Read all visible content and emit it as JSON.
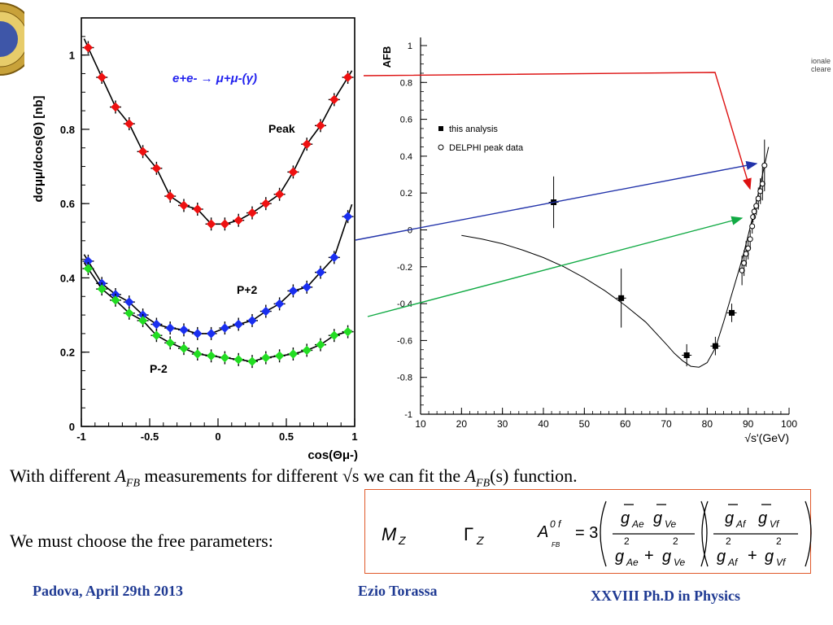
{
  "chart_data": [
    {
      "type": "scatter",
      "title": "",
      "xlabel": "cos(Θμ-)",
      "ylabel": "dσμμ/dcos(Θ) [nb]",
      "xlim": [
        -1,
        1
      ],
      "ylim": [
        0,
        1.1
      ],
      "x_ticks": [
        "-1",
        "-0.5",
        "0",
        "0.5",
        "1"
      ],
      "y_ticks": [
        "0",
        "0.2",
        "0.4",
        "0.6",
        "0.8",
        "1"
      ],
      "annotation": "e+e- → μ+μ-(γ)",
      "series": [
        {
          "name": "Peak",
          "color": "#ee1111",
          "x": [
            -0.95,
            -0.85,
            -0.75,
            -0.65,
            -0.55,
            -0.45,
            -0.35,
            -0.25,
            -0.15,
            -0.05,
            0.05,
            0.15,
            0.25,
            0.35,
            0.45,
            0.55,
            0.65,
            0.75,
            0.85,
            0.95
          ],
          "y": [
            1.02,
            0.94,
            0.86,
            0.815,
            0.74,
            0.695,
            0.62,
            0.595,
            0.585,
            0.545,
            0.545,
            0.555,
            0.575,
            0.6,
            0.625,
            0.685,
            0.76,
            0.81,
            0.88,
            0.94
          ]
        },
        {
          "name": "P+2",
          "color": "#1a2ff0",
          "x": [
            -0.95,
            -0.85,
            -0.75,
            -0.65,
            -0.55,
            -0.45,
            -0.35,
            -0.25,
            -0.15,
            -0.05,
            0.05,
            0.15,
            0.25,
            0.35,
            0.45,
            0.55,
            0.65,
            0.75,
            0.85,
            0.95
          ],
          "y": [
            0.445,
            0.385,
            0.355,
            0.335,
            0.3,
            0.275,
            0.265,
            0.26,
            0.25,
            0.25,
            0.265,
            0.275,
            0.285,
            0.31,
            0.33,
            0.365,
            0.375,
            0.415,
            0.455,
            0.565
          ]
        },
        {
          "name": "P-2",
          "color": "#22dd22",
          "x": [
            -0.95,
            -0.85,
            -0.75,
            -0.65,
            -0.55,
            -0.45,
            -0.35,
            -0.25,
            -0.15,
            -0.05,
            0.05,
            0.15,
            0.25,
            0.35,
            0.45,
            0.55,
            0.65,
            0.75,
            0.85,
            0.95
          ],
          "y": [
            0.425,
            0.37,
            0.34,
            0.305,
            0.285,
            0.245,
            0.225,
            0.21,
            0.195,
            0.19,
            0.185,
            0.18,
            0.175,
            0.185,
            0.19,
            0.195,
            0.205,
            0.22,
            0.245,
            0.255
          ]
        }
      ]
    },
    {
      "type": "scatter",
      "title": "",
      "xlabel": "√s'(GeV)",
      "ylabel": "AFB",
      "xlim": [
        10,
        100
      ],
      "ylim": [
        -1,
        1
      ],
      "x_ticks": [
        "10",
        "20",
        "30",
        "40",
        "50",
        "60",
        "70",
        "80",
        "90",
        "100"
      ],
      "y_ticks": [
        "-1",
        "-0.8",
        "-0.6",
        "-0.4",
        "-0.2",
        "0",
        "0.2",
        "0.4",
        "0.6",
        "0.8",
        "1"
      ],
      "legend_position": "upper-left",
      "series": [
        {
          "name": "this analysis",
          "marker": "filled-square",
          "x": [
            42.5,
            59,
            75,
            82,
            86
          ],
          "y": [
            0.15,
            -0.37,
            -0.68,
            -0.63,
            -0.45
          ],
          "yerr": [
            0.14,
            0.16,
            0.06,
            0.05,
            0.05
          ]
        },
        {
          "name": "DELPHI peak data",
          "marker": "open-circle",
          "x": [
            88.5,
            89,
            89.5,
            90,
            90.5,
            91,
            91.2,
            91.5,
            92,
            92.5,
            93,
            93.5,
            94
          ],
          "y": [
            -0.22,
            -0.18,
            -0.13,
            -0.1,
            -0.05,
            0.02,
            0.07,
            0.1,
            0.13,
            0.17,
            0.21,
            0.25,
            0.35
          ],
          "yerr": [
            0.08,
            0.07,
            0.07,
            0.06,
            0.05,
            0.04,
            0.03,
            0.04,
            0.05,
            0.06,
            0.07,
            0.09,
            0.14
          ]
        },
        {
          "name": "fit",
          "type": "line",
          "x": [
            20,
            25,
            30,
            35,
            40,
            45,
            50,
            55,
            60,
            65,
            70,
            72,
            74,
            76,
            78,
            80,
            82,
            84,
            86,
            88,
            89,
            90,
            91,
            92,
            93,
            94,
            95
          ],
          "y": [
            -0.03,
            -0.05,
            -0.075,
            -0.11,
            -0.15,
            -0.2,
            -0.26,
            -0.33,
            -0.41,
            -0.5,
            -0.62,
            -0.67,
            -0.71,
            -0.74,
            -0.745,
            -0.72,
            -0.64,
            -0.5,
            -0.35,
            -0.2,
            -0.12,
            -0.03,
            0.06,
            0.15,
            0.25,
            0.35,
            0.45
          ]
        }
      ]
    }
  ],
  "text": {
    "line1_pre": "With different ",
    "afb_A": "A",
    "afb_sub": "FB",
    "line1_mid": " measurements for different √s  we can fit the ",
    "afb2_A": "A",
    "afb2_sub": "FB",
    "line1_post": "(s) function.",
    "line2": "We must choose the free parameters:"
  },
  "formula": {
    "mz": "M",
    "mz_sub": "Z",
    "gamma": "Γ",
    "gamma_sub": "Z",
    "a_main": "A",
    "a_sup": "0 f",
    "a_sub": "FB",
    "equals": "= 3",
    "g": "g",
    "sub_Ae": "Ae",
    "sub_Ve": "Ve",
    "sub_Af": "Af",
    "sub_Vf": "Vf",
    "plus": "+",
    "two": "2"
  },
  "footer": {
    "left": "Padova, April 29th 2013",
    "center": "Ezio Torassa",
    "right": "XXVIII  Ph.D in Physics"
  },
  "logo_text": [
    "ionale",
    "cleare"
  ],
  "colors": {
    "footer": "#1f3a93",
    "box_border": "#e05a2b",
    "arrow_red": "#dd1111",
    "arrow_blue": "#2233aa",
    "arrow_green": "#11aa44",
    "annotation": "#2222ee"
  }
}
